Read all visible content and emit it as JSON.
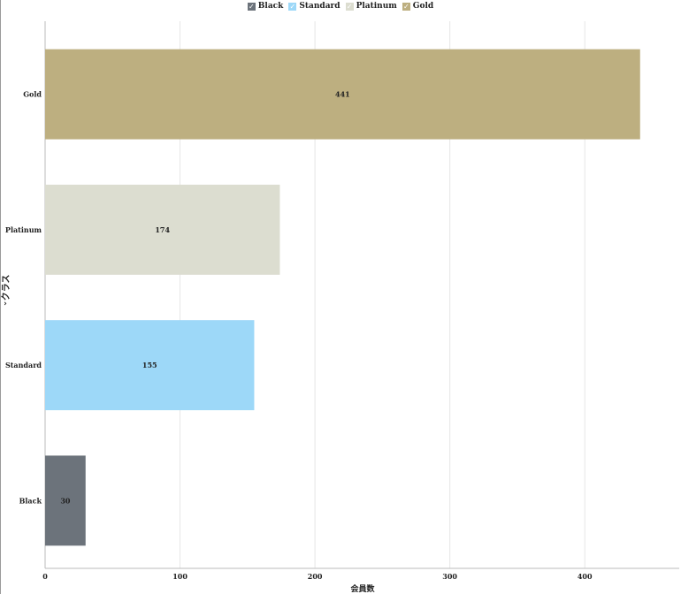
{
  "legend": [
    {
      "label": "Black",
      "color": "#6c737b"
    },
    {
      "label": "Standard",
      "color": "#9dd8f8"
    },
    {
      "label": "Platinum",
      "color": "#dcddd0"
    },
    {
      "label": "Gold",
      "color": "#bdaf80"
    }
  ],
  "check_glyph": "✓",
  "y_axis": {
    "label": "クラス",
    "sort_icon": "chevron-down-icon"
  },
  "x_axis": {
    "label": "会員数"
  },
  "chart_data": {
    "type": "bar",
    "orientation": "horizontal",
    "categories": [
      "Gold",
      "Platinum",
      "Standard",
      "Black"
    ],
    "values": [
      441,
      174,
      155,
      30
    ],
    "colors": [
      "#bdaf80",
      "#dcddd0",
      "#9dd8f8",
      "#6c737b"
    ],
    "data_labels": [
      "441",
      "174",
      "155",
      "30"
    ],
    "xlabel": "会員数",
    "ylabel": "クラス",
    "xlim": [
      0,
      470
    ],
    "xticks": [
      0,
      100,
      200,
      300,
      400
    ],
    "grid": true,
    "legend_position": "top-center"
  }
}
